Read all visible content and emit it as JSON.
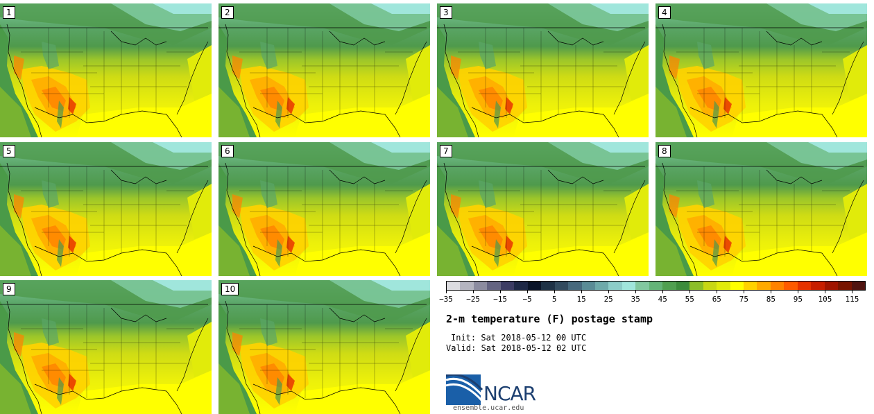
{
  "panels": [
    {
      "label": "1"
    },
    {
      "label": "2"
    },
    {
      "label": "3"
    },
    {
      "label": "4"
    },
    {
      "label": "5"
    },
    {
      "label": "6"
    },
    {
      "label": "7"
    },
    {
      "label": "8"
    },
    {
      "label": "9"
    },
    {
      "label": "10"
    }
  ],
  "colorbar": {
    "colors": [
      "#dcdce0",
      "#b4b4c0",
      "#8c8ca0",
      "#646482",
      "#3c3c64",
      "#1e2846",
      "#0a1428",
      "#1e3246",
      "#324b5f",
      "#46697d",
      "#5a8c96",
      "#6eaaaa",
      "#8ccdc8",
      "#a0e6dc",
      "#82c8a0",
      "#64b478",
      "#50a050",
      "#3c8c3c",
      "#8cbe28",
      "#c8d714",
      "#e1eb0a",
      "#ffff00",
      "#ffd200",
      "#ffaa00",
      "#ff8200",
      "#ff5a00",
      "#e63200",
      "#c81e00",
      "#a01400",
      "#781400",
      "#501410"
    ],
    "ticks": [
      "-35",
      "-25",
      "-15",
      "-5",
      "5",
      "15",
      "25",
      "35",
      "45",
      "55",
      "65",
      "75",
      "85",
      "95",
      "105",
      "115"
    ]
  },
  "title": "2-m temperature (F) postage stamp",
  "init": "Init: Sat 2018-05-12 00 UTC",
  "valid": "Valid: Sat 2018-05-12 02 UTC",
  "logo": {
    "text": "NCAR",
    "colors": [
      "#1a5fa8",
      "#1c3f70"
    ]
  },
  "site": "ensemble.ucar.edu"
}
